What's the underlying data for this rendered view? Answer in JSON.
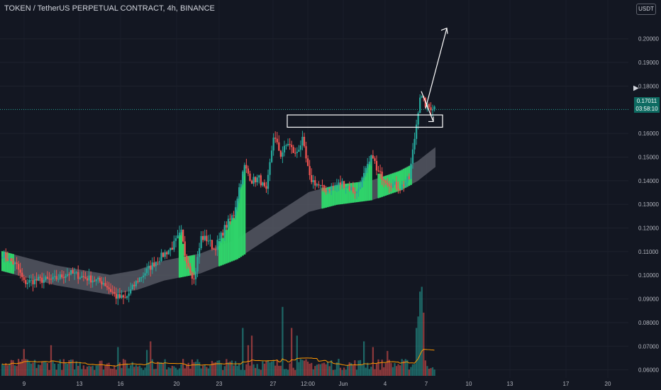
{
  "header": {
    "title": "TOKEN / TetherUS PERPETUAL CONTRACT, 4h, BINANCE"
  },
  "currency_badge": "USDT",
  "last_price": {
    "value": "0.17011",
    "countdown": "03:58:10"
  },
  "chart_data": {
    "type": "candlestick",
    "y_axis": {
      "ticks": [
        "0.20000",
        "0.19000",
        "0.18000",
        "0.16000",
        "0.15000",
        "0.14000",
        "0.13000",
        "0.12000",
        "0.11000",
        "0.10000",
        "0.09000",
        "0.08000",
        "0.07000",
        "0.06000"
      ],
      "ylim": [
        0.0575,
        0.2095
      ]
    },
    "x_axis": {
      "ticks": [
        "9",
        "13",
        "16",
        "20",
        "23",
        "27",
        "12:00",
        "Jun",
        "4",
        "7",
        "10",
        "13",
        "17",
        "20"
      ]
    },
    "colors": {
      "up": "#26a69a",
      "down": "#ef5350",
      "band": "#5d606b",
      "band_highlight": "#2fd36a",
      "volume_ma": "#ff9800",
      "background": "#131722",
      "annotation": "#ffffff"
    },
    "anchors": [
      [
        0,
        0.109
      ],
      [
        8,
        0.104
      ],
      [
        12,
        0.097
      ],
      [
        20,
        0.098
      ],
      [
        28,
        0.098
      ],
      [
        37,
        0.101
      ],
      [
        46,
        0.099
      ],
      [
        56,
        0.097
      ],
      [
        63,
        0.091
      ],
      [
        68,
        0.09
      ],
      [
        75,
        0.098
      ],
      [
        85,
        0.106
      ],
      [
        94,
        0.112
      ],
      [
        99,
        0.118
      ],
      [
        101,
        0.109
      ],
      [
        106,
        0.098
      ],
      [
        110,
        0.116
      ],
      [
        114,
        0.115
      ],
      [
        117,
        0.111
      ],
      [
        120,
        0.115
      ],
      [
        123,
        0.12
      ],
      [
        128,
        0.126
      ],
      [
        131,
        0.137
      ],
      [
        134,
        0.146
      ],
      [
        138,
        0.14
      ],
      [
        142,
        0.141
      ],
      [
        146,
        0.135
      ],
      [
        150,
        0.159
      ],
      [
        154,
        0.151
      ],
      [
        158,
        0.156
      ],
      [
        162,
        0.151
      ],
      [
        166,
        0.157
      ],
      [
        170,
        0.141
      ],
      [
        178,
        0.136
      ],
      [
        188,
        0.139
      ],
      [
        196,
        0.135
      ],
      [
        201,
        0.144
      ],
      [
        205,
        0.151
      ],
      [
        207,
        0.144
      ],
      [
        214,
        0.139
      ],
      [
        220,
        0.137
      ],
      [
        225,
        0.141
      ],
      [
        228,
        0.158
      ],
      [
        231,
        0.176
      ],
      [
        235,
        0.171
      ],
      [
        239,
        0.171
      ]
    ],
    "band": [
      [
        0,
        0.106
      ],
      [
        30,
        0.1
      ],
      [
        60,
        0.096
      ],
      [
        75,
        0.098
      ],
      [
        90,
        0.102
      ],
      [
        110,
        0.105
      ],
      [
        130,
        0.111
      ],
      [
        150,
        0.121
      ],
      [
        170,
        0.131
      ],
      [
        185,
        0.134
      ],
      [
        205,
        0.136
      ],
      [
        220,
        0.14
      ],
      [
        230,
        0.144
      ],
      [
        240,
        0.15
      ]
    ],
    "band_highlight_ranges": [
      [
        0,
        6
      ],
      [
        98,
        106
      ],
      [
        120,
        134
      ],
      [
        177,
        204
      ],
      [
        208,
        226
      ]
    ],
    "volume_spikes": [
      [
        12,
        0.28
      ],
      [
        27,
        0.32
      ],
      [
        64,
        0.3
      ],
      [
        80,
        0.27
      ],
      [
        82,
        0.36
      ],
      [
        133,
        0.5
      ],
      [
        136,
        0.32
      ],
      [
        138,
        0.42
      ],
      [
        155,
        0.72
      ],
      [
        160,
        0.5
      ],
      [
        163,
        0.42
      ],
      [
        200,
        0.36
      ],
      [
        205,
        0.3
      ],
      [
        213,
        0.26
      ],
      [
        229,
        0.5
      ],
      [
        230,
        0.62
      ],
      [
        231,
        0.88
      ],
      [
        232,
        0.93
      ],
      [
        233,
        0.66
      ]
    ],
    "annotations": {
      "zone": {
        "from": 0.1626,
        "to": 0.1678
      },
      "arrow_up": {
        "from_price": 0.1705,
        "to_price": 0.2045
      },
      "arrow_down": {
        "from_price": 0.1778,
        "to_price": 0.165
      }
    }
  }
}
